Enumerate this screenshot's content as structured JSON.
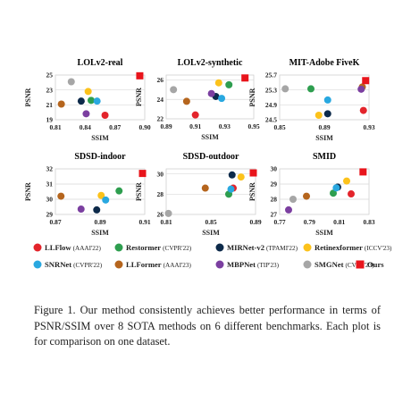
{
  "figure": {
    "caption": "Figure 1. Our method consistently achieves better performance in terms of PSNR/SSIM over 8 SOTA methods on 6 different benchmarks. Each plot is for comparison on one dataset."
  },
  "legend": [
    {
      "name": "LLFlow",
      "venue": "(AAAI'22)",
      "color": "#e3242b",
      "marker": "circle"
    },
    {
      "name": "Restormer",
      "venue": "(CVPR'22)",
      "color": "#2e9e4f",
      "marker": "circle"
    },
    {
      "name": "MIRNet-v2",
      "venue": "(TPAMI'22)",
      "color": "#0d2a4a",
      "marker": "circle"
    },
    {
      "name": "Retinexformer",
      "venue": "(ICCV'23)",
      "color": "#fcc21b",
      "marker": "circle"
    },
    {
      "name": "SNRNet",
      "venue": "(CVPR'22)",
      "color": "#29a8e0",
      "marker": "circle"
    },
    {
      "name": "LLFormer",
      "venue": "(AAAI'23)",
      "color": "#b5651d",
      "marker": "circle"
    },
    {
      "name": "MBPNet",
      "venue": "(TIP'23)",
      "color": "#7b3fa0",
      "marker": "circle"
    },
    {
      "name": "SMGNet",
      "venue": "(CVPR'23)",
      "color": "#a6a6a6",
      "marker": "circle"
    },
    {
      "name": "Ours",
      "venue": "",
      "color": "#e8141b",
      "marker": "square"
    }
  ],
  "chart_data": [
    {
      "type": "scatter",
      "title": "LOLv2-real",
      "xlabel": "SSIM",
      "ylabel": "PSNR",
      "xlim": [
        0.81,
        0.9
      ],
      "ylim": [
        19,
        25
      ],
      "xticks": [
        "0.81",
        "0.84",
        "0.87",
        "0.90"
      ],
      "yticks": [
        "19",
        "21",
        "23",
        "25"
      ],
      "grid": true,
      "points": [
        {
          "method": "LLFlow",
          "x": 0.86,
          "y": 19.6
        },
        {
          "method": "Restormer",
          "x": 0.846,
          "y": 21.6
        },
        {
          "method": "MIRNet-v2",
          "x": 0.836,
          "y": 21.5
        },
        {
          "method": "Retinexformer",
          "x": 0.843,
          "y": 22.8
        },
        {
          "method": "SNRNet",
          "x": 0.852,
          "y": 21.5
        },
        {
          "method": "LLFormer",
          "x": 0.816,
          "y": 21.1
        },
        {
          "method": "MBPNet",
          "x": 0.841,
          "y": 19.8
        },
        {
          "method": "SMGNet",
          "x": 0.826,
          "y": 24.1
        },
        {
          "method": "Ours",
          "x": 0.895,
          "y": 24.9
        }
      ]
    },
    {
      "type": "scatter",
      "title": "LOLv2-synthetic",
      "xlabel": "SSIM",
      "ylabel": "PSNR",
      "xlim": [
        0.89,
        0.95
      ],
      "ylim": [
        22,
        26.5
      ],
      "xticks": [
        "0.89",
        "0.91",
        "0.93",
        "0.95"
      ],
      "yticks": [
        "22",
        "24",
        "26"
      ],
      "grid": true,
      "points": [
        {
          "method": "LLFlow",
          "x": 0.91,
          "y": 22.4
        },
        {
          "method": "Restormer",
          "x": 0.933,
          "y": 25.5
        },
        {
          "method": "MIRNet-v2",
          "x": 0.924,
          "y": 24.3
        },
        {
          "method": "Retinexformer",
          "x": 0.926,
          "y": 25.7
        },
        {
          "method": "SNRNet",
          "x": 0.928,
          "y": 24.1
        },
        {
          "method": "LLFormer",
          "x": 0.904,
          "y": 23.8
        },
        {
          "method": "MBPNet",
          "x": 0.921,
          "y": 24.6
        },
        {
          "method": "SMGNet",
          "x": 0.895,
          "y": 25.0
        },
        {
          "method": "Ours",
          "x": 0.944,
          "y": 26.2
        }
      ]
    },
    {
      "type": "scatter",
      "title": "MIT-Adobe FiveK",
      "xlabel": "SSIM",
      "ylabel": "PSNR",
      "xlim": [
        0.85,
        0.93
      ],
      "ylim": [
        24.5,
        25.7
      ],
      "xticks": [
        "0.85",
        "0.89",
        "0.93"
      ],
      "yticks": [
        "24.5",
        "24.9",
        "25.3",
        "25.7"
      ],
      "grid": true,
      "points": [
        {
          "method": "LLFlow",
          "x": 0.925,
          "y": 24.75
        },
        {
          "method": "Restormer",
          "x": 0.878,
          "y": 25.33
        },
        {
          "method": "MIRNet-v2",
          "x": 0.893,
          "y": 24.66
        },
        {
          "method": "Retinexformer",
          "x": 0.885,
          "y": 24.62
        },
        {
          "method": "SNRNet",
          "x": 0.893,
          "y": 25.03
        },
        {
          "method": "LLFormer",
          "x": 0.924,
          "y": 25.38
        },
        {
          "method": "MBPNet",
          "x": 0.923,
          "y": 25.32
        },
        {
          "method": "SMGNet",
          "x": 0.855,
          "y": 25.33
        },
        {
          "method": "Ours",
          "x": 0.927,
          "y": 25.55
        }
      ]
    },
    {
      "type": "scatter",
      "title": "SDSD-indoor",
      "xlabel": "SSIM",
      "ylabel": "PSNR",
      "xlim": [
        0.87,
        0.91
      ],
      "ylim": [
        29,
        32
      ],
      "xticks": [
        "0.87",
        "0.89",
        "0.91"
      ],
      "yticks": [
        "29",
        "30",
        "31",
        "32"
      ],
      "grid": true,
      "points": [
        {
          "method": "Restormer",
          "x": 0.8985,
          "y": 30.55
        },
        {
          "method": "MIRNet-v2",
          "x": 0.8885,
          "y": 29.3
        },
        {
          "method": "Retinexformer",
          "x": 0.8905,
          "y": 30.25
        },
        {
          "method": "SNRNet",
          "x": 0.8925,
          "y": 29.95
        },
        {
          "method": "LLFormer",
          "x": 0.8725,
          "y": 30.2
        },
        {
          "method": "MBPNet",
          "x": 0.8815,
          "y": 29.35
        },
        {
          "method": "Ours",
          "x": 0.909,
          "y": 31.7
        }
      ]
    },
    {
      "type": "scatter",
      "title": "SDSD-outdoor",
      "xlabel": "SSIM",
      "ylabel": "PSNR",
      "xlim": [
        0.81,
        0.89
      ],
      "ylim": [
        26,
        30.5
      ],
      "xticks": [
        "0.81",
        "0.85",
        "0.89"
      ],
      "yticks": [
        "26",
        "28",
        "30"
      ],
      "grid": true,
      "points": [
        {
          "method": "LLFlow",
          "x": 0.87,
          "y": 28.6
        },
        {
          "method": "Restormer",
          "x": 0.866,
          "y": 28.0
        },
        {
          "method": "MIRNet-v2",
          "x": 0.869,
          "y": 29.9
        },
        {
          "method": "Retinexformer",
          "x": 0.877,
          "y": 29.7
        },
        {
          "method": "SNRNet",
          "x": 0.868,
          "y": 28.5
        },
        {
          "method": "LLFormer",
          "x": 0.845,
          "y": 28.6
        },
        {
          "method": "SMGNet",
          "x": 0.812,
          "y": 26.1
        },
        {
          "method": "Ours",
          "x": 0.888,
          "y": 30.1
        }
      ]
    },
    {
      "type": "scatter",
      "title": "SMID",
      "xlabel": "SSIM",
      "ylabel": "PSNR",
      "xlim": [
        0.77,
        0.83
      ],
      "ylim": [
        27,
        30
      ],
      "xticks": [
        "0.77",
        "0.79",
        "0.81",
        "0.83"
      ],
      "yticks": [
        "27",
        "28",
        "29",
        "30"
      ],
      "grid": true,
      "points": [
        {
          "method": "LLFlow",
          "x": 0.818,
          "y": 28.35
        },
        {
          "method": "Restormer",
          "x": 0.806,
          "y": 28.4
        },
        {
          "method": "MIRNet-v2",
          "x": 0.809,
          "y": 28.8
        },
        {
          "method": "Retinexformer",
          "x": 0.815,
          "y": 29.2
        },
        {
          "method": "SNRNet",
          "x": 0.808,
          "y": 28.75
        },
        {
          "method": "LLFormer",
          "x": 0.788,
          "y": 28.2
        },
        {
          "method": "MBPNet",
          "x": 0.776,
          "y": 27.3
        },
        {
          "method": "SMGNet",
          "x": 0.779,
          "y": 28.0
        },
        {
          "method": "Ours",
          "x": 0.826,
          "y": 29.8
        }
      ]
    }
  ]
}
